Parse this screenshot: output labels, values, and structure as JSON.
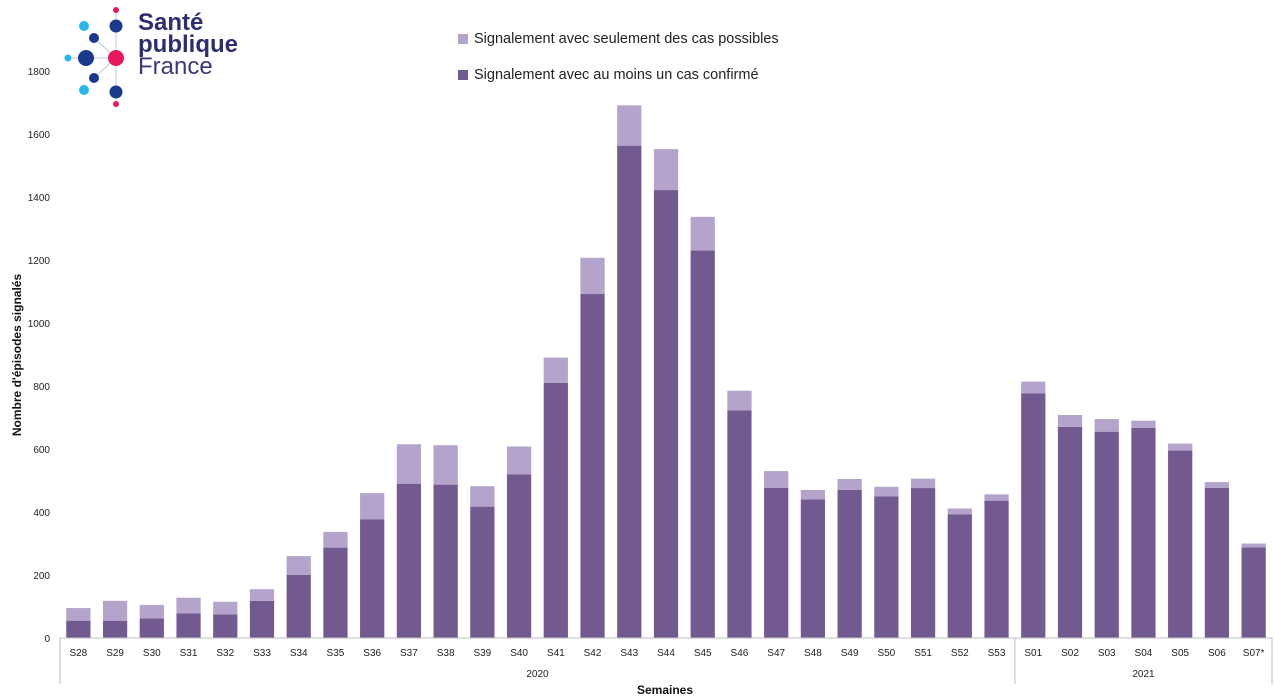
{
  "logo": {
    "line1": "Santé",
    "line2": "publique",
    "line3": "France",
    "colors": {
      "dark": "#1b3a8c",
      "light": "#2bb5e8",
      "pink": "#e6185f"
    }
  },
  "chart_data": {
    "type": "bar",
    "stacked": true,
    "ylabel": "Nombre d'épisodes signalés",
    "xlabel": "Semaines",
    "ylim": [
      0,
      1800
    ],
    "yticks": [
      0,
      200,
      400,
      600,
      800,
      1000,
      1200,
      1400,
      1600,
      1800
    ],
    "grid": false,
    "legend_position": "top-center",
    "categories": [
      "S28",
      "S29",
      "S30",
      "S31",
      "S32",
      "S33",
      "S34",
      "S35",
      "S36",
      "S37",
      "S38",
      "S39",
      "S40",
      "S41",
      "S42",
      "S43",
      "S44",
      "S45",
      "S46",
      "S47",
      "S48",
      "S49",
      "S50",
      "S51",
      "S52",
      "S53",
      "S01",
      "S02",
      "S03",
      "S04",
      "S05",
      "S06",
      "S07*"
    ],
    "year_groups": [
      {
        "label": "2020",
        "from": 0,
        "to": 25
      },
      {
        "label": "2021",
        "from": 26,
        "to": 32
      }
    ],
    "series": [
      {
        "name": "Signalement avec au moins un cas confirmé",
        "color": "#725a91",
        "values": [
          55,
          55,
          62,
          78,
          75,
          118,
          200,
          287,
          377,
          490,
          487,
          417,
          520,
          810,
          1092,
          1563,
          1422,
          1230,
          723,
          477,
          440,
          470,
          450,
          476,
          393,
          436,
          777,
          670,
          655,
          667,
          595,
          477,
          288
        ]
      },
      {
        "name": "Signalement avec seulement des cas possibles",
        "color": "#b4a4cb",
        "values": [
          40,
          63,
          43,
          50,
          40,
          37,
          60,
          50,
          83,
          125,
          125,
          65,
          88,
          80,
          115,
          128,
          130,
          107,
          62,
          53,
          30,
          35,
          30,
          30,
          18,
          20,
          37,
          38,
          40,
          23,
          22,
          18,
          12
        ]
      }
    ],
    "legend_order": [
      "Signalement avec seulement des cas possibles",
      "Signalement avec au moins un cas confirmé"
    ]
  }
}
